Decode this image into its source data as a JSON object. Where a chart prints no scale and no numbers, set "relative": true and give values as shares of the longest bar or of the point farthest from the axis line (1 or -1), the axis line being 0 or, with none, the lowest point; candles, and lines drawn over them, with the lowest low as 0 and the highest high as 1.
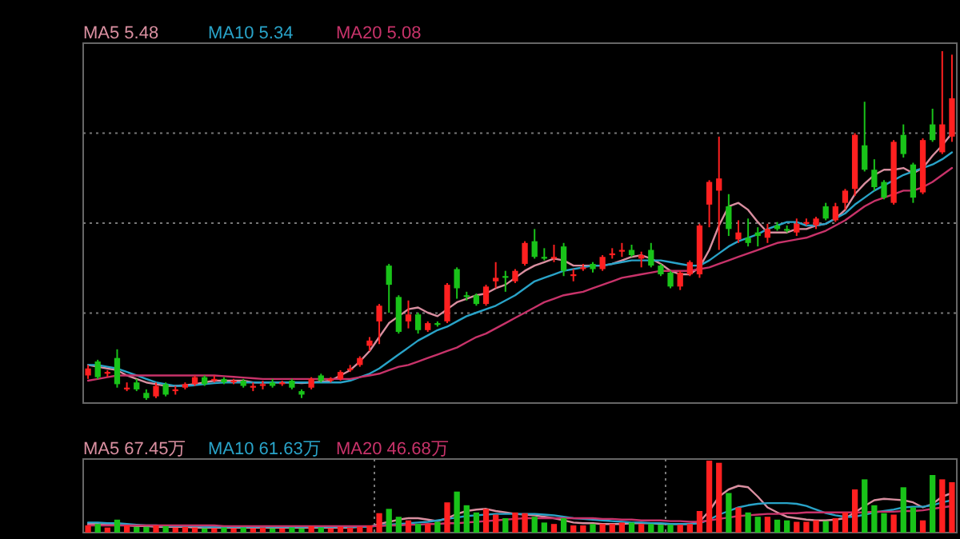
{
  "chart_data": [
    {
      "type": "candlestick",
      "relative": true,
      "grid": "y",
      "legend": "top left",
      "categories": [
        null,
        null,
        null,
        null,
        null,
        null,
        null,
        null,
        null,
        null,
        null,
        null,
        null,
        null,
        null,
        null,
        null,
        null,
        null,
        null,
        null,
        null,
        null,
        null,
        null,
        null,
        null,
        null,
        null,
        null,
        null,
        null,
        null,
        null,
        null,
        null,
        null,
        null,
        null,
        null,
        null,
        null,
        null,
        null,
        null,
        null,
        null,
        null,
        null,
        null,
        null,
        null,
        null,
        null,
        null,
        null,
        null,
        null,
        null,
        null,
        null,
        null,
        null,
        null,
        null,
        null,
        null,
        null,
        null,
        null,
        null,
        null,
        null,
        null,
        null,
        null,
        null,
        null,
        null,
        null,
        null,
        null,
        null,
        null,
        null,
        null,
        null,
        null,
        null,
        null
      ],
      "ohlc": [
        [
          0.07,
          0.1,
          0.06,
          0.09
        ],
        [
          0.11,
          0.115,
          0.06,
          0.065
        ],
        [
          0.075,
          0.085,
          0.065,
          0.08
        ],
        [
          0.12,
          0.145,
          0.035,
          0.045
        ],
        [
          0.03,
          0.05,
          0.025,
          0.035
        ],
        [
          0.05,
          0.06,
          0.025,
          0.03
        ],
        [
          0.02,
          0.03,
          0,
          0.005
        ],
        [
          0.01,
          0.05,
          0.005,
          0.04
        ],
        [
          0.045,
          0.05,
          0.01,
          0.015
        ],
        [
          0.025,
          0.04,
          0.015,
          0.03
        ],
        [
          0.035,
          0.05,
          0.03,
          0.045
        ],
        [
          0.045,
          0.07,
          0.04,
          0.065
        ],
        [
          0.065,
          0.07,
          0.04,
          0.045
        ],
        [
          0.055,
          0.07,
          0.05,
          0.06
        ],
        [
          0.06,
          0.065,
          0.045,
          0.05
        ],
        [
          0.05,
          0.06,
          0.045,
          0.055
        ],
        [
          0.055,
          0.06,
          0.035,
          0.04
        ],
        [
          0.035,
          0.05,
          0.025,
          0.04
        ],
        [
          0.04,
          0.055,
          0.03,
          0.045
        ],
        [
          0.05,
          0.06,
          0.035,
          0.04
        ],
        [
          0.045,
          0.055,
          0.04,
          0.05
        ],
        [
          0.055,
          0.06,
          0.03,
          0.035
        ],
        [
          0.025,
          0.03,
          0.005,
          0.015
        ],
        [
          0.035,
          0.065,
          0.03,
          0.06
        ],
        [
          0.07,
          0.075,
          0.05,
          0.055
        ],
        [
          0.055,
          0.065,
          0.05,
          0.06
        ],
        [
          0.06,
          0.085,
          0.055,
          0.08
        ],
        [
          0.085,
          0.1,
          0.08,
          0.09
        ],
        [
          0.1,
          0.125,
          0.095,
          0.12
        ],
        [
          0.155,
          0.18,
          0.14,
          0.17
        ],
        [
          0.225,
          0.275,
          0.16,
          0.27
        ],
        [
          0.385,
          0.39,
          0.25,
          0.33
        ],
        [
          0.295,
          0.3,
          0.19,
          0.195
        ],
        [
          0.225,
          0.285,
          0.205,
          0.245
        ],
        [
          0.245,
          0.25,
          0.19,
          0.2
        ],
        [
          0.2,
          0.225,
          0.195,
          0.22
        ],
        [
          0.22,
          0.225,
          0.21,
          0.215
        ],
        [
          0.225,
          0.335,
          0.22,
          0.33
        ],
        [
          0.375,
          0.38,
          0.29,
          0.32
        ],
        [
          0.3,
          0.31,
          0.285,
          0.295
        ],
        [
          0.3,
          0.305,
          0.27,
          0.275
        ],
        [
          0.275,
          0.33,
          0.27,
          0.325
        ],
        [
          0.34,
          0.395,
          0.32,
          0.35
        ],
        [
          0.355,
          0.37,
          0.31,
          0.35
        ],
        [
          0.34,
          0.375,
          0.335,
          0.37
        ],
        [
          0.39,
          0.455,
          0.385,
          0.45
        ],
        [
          0.455,
          0.49,
          0.405,
          0.41
        ],
        [
          0.41,
          0.435,
          0.4,
          0.405
        ],
        [
          0.405,
          0.445,
          0.395,
          0.41
        ],
        [
          0.44,
          0.45,
          0.355,
          0.37
        ],
        [
          0.355,
          0.375,
          0.34,
          0.36
        ],
        [
          0.375,
          0.39,
          0.37,
          0.38
        ],
        [
          0.39,
          0.395,
          0.365,
          0.375
        ],
        [
          0.375,
          0.415,
          0.37,
          0.41
        ],
        [
          0.415,
          0.435,
          0.405,
          0.42
        ],
        [
          0.425,
          0.45,
          0.41,
          0.43
        ],
        [
          0.43,
          0.445,
          0.41,
          0.415
        ],
        [
          0.405,
          0.425,
          0.38,
          0.415
        ],
        [
          0.43,
          0.45,
          0.38,
          0.385
        ],
        [
          0.385,
          0.39,
          0.355,
          0.36
        ],
        [
          0.365,
          0.37,
          0.32,
          0.325
        ],
        [
          0.325,
          0.37,
          0.315,
          0.365
        ],
        [
          0.36,
          0.4,
          0.355,
          0.395
        ],
        [
          0.36,
          0.505,
          0.35,
          0.5
        ],
        [
          0.56,
          0.63,
          0.495,
          0.625
        ],
        [
          0.6,
          0.755,
          0.43,
          0.635
        ],
        [
          0.555,
          0.59,
          0.47,
          0.49
        ],
        [
          0.46,
          0.515,
          0.45,
          0.48
        ],
        [
          0.465,
          0.52,
          0.44,
          0.45
        ],
        [
          0.48,
          0.495,
          0.44,
          0.47
        ],
        [
          0.465,
          0.505,
          0.45,
          0.49
        ],
        [
          0.5,
          0.51,
          0.485,
          0.49
        ],
        [
          0.49,
          0.5,
          0.48,
          0.485
        ],
        [
          0.48,
          0.52,
          0.47,
          0.505
        ],
        [
          0.505,
          0.52,
          0.5,
          0.51
        ],
        [
          0.5,
          0.525,
          0.49,
          0.52
        ],
        [
          0.555,
          0.565,
          0.515,
          0.52
        ],
        [
          0.515,
          0.565,
          0.51,
          0.555
        ],
        [
          0.565,
          0.605,
          0.545,
          0.6
        ],
        [
          0.605,
          0.765,
          0.585,
          0.76
        ],
        [
          0.73,
          0.855,
          0.655,
          0.66
        ],
        [
          0.66,
          0.69,
          0.6,
          0.61
        ],
        [
          0.625,
          0.63,
          0.575,
          0.58
        ],
        [
          0.565,
          0.745,
          0.56,
          0.74
        ],
        [
          0.76,
          0.79,
          0.695,
          0.705
        ],
        [
          0.675,
          0.68,
          0.565,
          0.58
        ],
        [
          0.595,
          0.75,
          0.59,
          0.745
        ],
        [
          0.79,
          0.835,
          0.74,
          0.745
        ],
        [
          0.71,
          1,
          0.705,
          0.79
        ],
        [
          0.755,
          0.99,
          0.74,
          0.865
        ]
      ],
      "colors": [
        "#ff2020",
        "#19c319",
        "#ff2020",
        "#19c319",
        "#ff2020",
        "#19c319",
        "#19c319",
        "#ff2020",
        "#19c319",
        "#ff2020",
        "#ff2020",
        "#ff2020",
        "#19c319",
        "#ff2020",
        "#19c319",
        "#ff2020",
        "#19c319",
        "#ff2020",
        "#ff2020",
        "#19c319",
        "#ff2020",
        "#19c319",
        "#19c319",
        "#ff2020",
        "#19c319",
        "#ff2020",
        "#ff2020",
        "#ff2020",
        "#ff2020",
        "#ff2020",
        "#ff2020",
        "#19c319",
        "#19c319",
        "#ff2020",
        "#19c319",
        "#ff2020",
        "#19c319",
        "#ff2020",
        "#19c319",
        "#19c319",
        "#19c319",
        "#ff2020",
        "#ff2020",
        "#19c319",
        "#ff2020",
        "#ff2020",
        "#19c319",
        "#19c319",
        "#ff2020",
        "#19c319",
        "#ff2020",
        "#ff2020",
        "#19c319",
        "#ff2020",
        "#ff2020",
        "#ff2020",
        "#19c319",
        "#ff2020",
        "#19c319",
        "#19c319",
        "#19c319",
        "#ff2020",
        "#ff2020",
        "#ff2020",
        "#ff2020",
        "#ff2020",
        "#19c319",
        "#ff2020",
        "#19c319",
        "#19c319",
        "#ff2020",
        "#19c319",
        "#19c319",
        "#ff2020",
        "#ff2020",
        "#ff2020",
        "#19c319",
        "#ff2020",
        "#ff2020",
        "#ff2020",
        "#19c319",
        "#19c319",
        "#19c319",
        "#ff2020",
        "#19c319",
        "#19c319",
        "#ff2020",
        "#19c319",
        "#ff2020",
        "#ff2020"
      ],
      "series": [
        {
          "type": "line",
          "name": "MA5 5.48",
          "color": "#d98fa0",
          "values": [
            0.1,
            0.095,
            0.09,
            0.085,
            0.07,
            0.06,
            0.05,
            0.045,
            0.04,
            0.04,
            0.042,
            0.045,
            0.05,
            0.055,
            0.055,
            0.055,
            0.055,
            0.05,
            0.05,
            0.05,
            0.05,
            0.05,
            0.048,
            0.05,
            0.052,
            0.055,
            0.07,
            0.085,
            0.11,
            0.14,
            0.18,
            0.22,
            0.24,
            0.26,
            0.265,
            0.25,
            0.24,
            0.26,
            0.28,
            0.29,
            0.3,
            0.305,
            0.32,
            0.33,
            0.35,
            0.37,
            0.385,
            0.395,
            0.405,
            0.4,
            0.385,
            0.385,
            0.385,
            0.385,
            0.39,
            0.4,
            0.41,
            0.415,
            0.405,
            0.39,
            0.37,
            0.36,
            0.36,
            0.38,
            0.43,
            0.5,
            0.555,
            0.565,
            0.545,
            0.51,
            0.48,
            0.48,
            0.48,
            0.49,
            0.49,
            0.5,
            0.505,
            0.52,
            0.545,
            0.59,
            0.62,
            0.645,
            0.66,
            0.66,
            0.665,
            0.65,
            0.665,
            0.7,
            0.73,
            0.765
          ]
        },
        {
          "type": "line",
          "name": "MA10 5.34",
          "color": "#29a3c8",
          "values": [
            0.1,
            0.1,
            0.095,
            0.09,
            0.08,
            0.07,
            0.06,
            0.05,
            0.045,
            0.04,
            0.04,
            0.042,
            0.045,
            0.048,
            0.05,
            0.05,
            0.05,
            0.05,
            0.05,
            0.05,
            0.05,
            0.05,
            0.05,
            0.05,
            0.05,
            0.05,
            0.05,
            0.055,
            0.065,
            0.075,
            0.09,
            0.11,
            0.13,
            0.15,
            0.17,
            0.185,
            0.2,
            0.21,
            0.225,
            0.24,
            0.25,
            0.26,
            0.27,
            0.285,
            0.3,
            0.32,
            0.34,
            0.35,
            0.36,
            0.37,
            0.375,
            0.38,
            0.385,
            0.385,
            0.39,
            0.395,
            0.4,
            0.4,
            0.4,
            0.4,
            0.395,
            0.39,
            0.385,
            0.385,
            0.4,
            0.42,
            0.44,
            0.455,
            0.465,
            0.475,
            0.49,
            0.5,
            0.51,
            0.51,
            0.5,
            0.5,
            0.505,
            0.52,
            0.535,
            0.56,
            0.58,
            0.6,
            0.615,
            0.63,
            0.645,
            0.655,
            0.665,
            0.675,
            0.69,
            0.71
          ]
        },
        {
          "type": "line",
          "name": "MA20 5.08",
          "color": "#c8336a",
          "values": [
            0.055,
            0.06,
            0.065,
            0.07,
            0.07,
            0.07,
            0.07,
            0.07,
            0.07,
            0.07,
            0.07,
            0.07,
            0.07,
            0.07,
            0.068,
            0.066,
            0.064,
            0.062,
            0.06,
            0.06,
            0.06,
            0.06,
            0.06,
            0.06,
            0.06,
            0.06,
            0.06,
            0.06,
            0.065,
            0.07,
            0.075,
            0.085,
            0.095,
            0.1,
            0.11,
            0.12,
            0.13,
            0.14,
            0.15,
            0.165,
            0.18,
            0.19,
            0.205,
            0.22,
            0.235,
            0.25,
            0.265,
            0.28,
            0.29,
            0.3,
            0.305,
            0.31,
            0.32,
            0.33,
            0.34,
            0.35,
            0.355,
            0.36,
            0.365,
            0.37,
            0.37,
            0.37,
            0.37,
            0.375,
            0.38,
            0.39,
            0.4,
            0.41,
            0.42,
            0.43,
            0.44,
            0.45,
            0.455,
            0.46,
            0.465,
            0.475,
            0.485,
            0.5,
            0.515,
            0.535,
            0.555,
            0.57,
            0.58,
            0.59,
            0.6,
            0.6,
            0.61,
            0.625,
            0.645,
            0.665
          ]
        }
      ]
    },
    {
      "type": "bar",
      "relative": true,
      "grid": "x",
      "legend": "top left",
      "categories": [
        null,
        null,
        null,
        null,
        null,
        null,
        null,
        null,
        null,
        null,
        null,
        null,
        null,
        null,
        null,
        null,
        null,
        null,
        null,
        null,
        null,
        null,
        null,
        null,
        null,
        null,
        null,
        null,
        null,
        null,
        null,
        null,
        null,
        null,
        null,
        null,
        null,
        null,
        null,
        null,
        null,
        null,
        null,
        null,
        null,
        null,
        null,
        null,
        null,
        null,
        null,
        null,
        null,
        null,
        null,
        null,
        null,
        null,
        null,
        null,
        null,
        null,
        null,
        null,
        null,
        null,
        null,
        null,
        null,
        null,
        null,
        null,
        null,
        null,
        null,
        null,
        null,
        null,
        null,
        null,
        null,
        null,
        null,
        null,
        null,
        null,
        null,
        null,
        null,
        null
      ],
      "values": [
        0.1,
        0.12,
        0.07,
        0.18,
        0.1,
        0.08,
        0.08,
        0.1,
        0.09,
        0.07,
        0.08,
        0.07,
        0.06,
        0.06,
        0.07,
        0.06,
        0.07,
        0.06,
        0.07,
        0.06,
        0.06,
        0.07,
        0.06,
        0.09,
        0.07,
        0.06,
        0.08,
        0.07,
        0.08,
        0.1,
        0.27,
        0.33,
        0.22,
        0.17,
        0.12,
        0.12,
        0.15,
        0.42,
        0.57,
        0.38,
        0.28,
        0.33,
        0.25,
        0.2,
        0.28,
        0.27,
        0.22,
        0.14,
        0.12,
        0.2,
        0.1,
        0.1,
        0.12,
        0.12,
        0.12,
        0.14,
        0.14,
        0.12,
        0.12,
        0.11,
        0.11,
        0.11,
        0.12,
        0.3,
        1,
        0.97,
        0.55,
        0.35,
        0.28,
        0.22,
        0.22,
        0.18,
        0.17,
        0.15,
        0.15,
        0.17,
        0.16,
        0.2,
        0.28,
        0.6,
        0.74,
        0.38,
        0.27,
        0.25,
        0.63,
        0.35,
        0.17,
        0.8,
        0.74,
        0.7
      ],
      "colors": [
        "#ff2020",
        "#19c319",
        "#ff2020",
        "#19c319",
        "#ff2020",
        "#19c319",
        "#19c319",
        "#ff2020",
        "#19c319",
        "#ff2020",
        "#ff2020",
        "#ff2020",
        "#19c319",
        "#ff2020",
        "#19c319",
        "#ff2020",
        "#19c319",
        "#ff2020",
        "#ff2020",
        "#19c319",
        "#ff2020",
        "#19c319",
        "#19c319",
        "#ff2020",
        "#19c319",
        "#ff2020",
        "#ff2020",
        "#ff2020",
        "#ff2020",
        "#ff2020",
        "#ff2020",
        "#19c319",
        "#19c319",
        "#ff2020",
        "#19c319",
        "#ff2020",
        "#19c319",
        "#ff2020",
        "#19c319",
        "#19c319",
        "#19c319",
        "#ff2020",
        "#ff2020",
        "#19c319",
        "#ff2020",
        "#ff2020",
        "#19c319",
        "#19c319",
        "#ff2020",
        "#19c319",
        "#ff2020",
        "#ff2020",
        "#19c319",
        "#ff2020",
        "#ff2020",
        "#ff2020",
        "#19c319",
        "#ff2020",
        "#19c319",
        "#19c319",
        "#19c319",
        "#ff2020",
        "#ff2020",
        "#ff2020",
        "#ff2020",
        "#ff2020",
        "#19c319",
        "#ff2020",
        "#19c319",
        "#19c319",
        "#ff2020",
        "#19c319",
        "#19c319",
        "#ff2020",
        "#ff2020",
        "#ff2020",
        "#19c319",
        "#ff2020",
        "#ff2020",
        "#ff2020",
        "#19c319",
        "#19c319",
        "#19c319",
        "#ff2020",
        "#19c319",
        "#19c319",
        "#ff2020",
        "#19c319",
        "#ff2020",
        "#ff2020"
      ],
      "series": [
        {
          "type": "line",
          "name": "MA5 67.45万",
          "color": "#d98fa0",
          "values": [
            0.12,
            0.12,
            0.11,
            0.11,
            0.1,
            0.09,
            0.09,
            0.08,
            0.08,
            0.08,
            0.08,
            0.07,
            0.07,
            0.07,
            0.07,
            0.07,
            0.07,
            0.07,
            0.07,
            0.07,
            0.07,
            0.07,
            0.07,
            0.07,
            0.07,
            0.07,
            0.07,
            0.07,
            0.08,
            0.08,
            0.12,
            0.15,
            0.18,
            0.2,
            0.2,
            0.18,
            0.16,
            0.2,
            0.26,
            0.3,
            0.32,
            0.33,
            0.3,
            0.28,
            0.26,
            0.25,
            0.24,
            0.22,
            0.2,
            0.17,
            0.14,
            0.13,
            0.13,
            0.12,
            0.12,
            0.12,
            0.13,
            0.13,
            0.13,
            0.12,
            0.12,
            0.12,
            0.12,
            0.15,
            0.3,
            0.5,
            0.6,
            0.65,
            0.63,
            0.5,
            0.35,
            0.28,
            0.22,
            0.2,
            0.18,
            0.17,
            0.17,
            0.18,
            0.2,
            0.28,
            0.37,
            0.45,
            0.47,
            0.46,
            0.45,
            0.42,
            0.35,
            0.4,
            0.5,
            0.55
          ]
        },
        {
          "type": "line",
          "name": "MA10 61.63万",
          "color": "#29a3c8",
          "values": [
            0.14,
            0.14,
            0.13,
            0.13,
            0.12,
            0.11,
            0.1,
            0.1,
            0.09,
            0.09,
            0.09,
            0.09,
            0.08,
            0.08,
            0.08,
            0.08,
            0.08,
            0.08,
            0.08,
            0.08,
            0.08,
            0.08,
            0.08,
            0.08,
            0.08,
            0.08,
            0.08,
            0.08,
            0.08,
            0.08,
            0.1,
            0.11,
            0.12,
            0.13,
            0.14,
            0.15,
            0.17,
            0.19,
            0.21,
            0.23,
            0.24,
            0.25,
            0.26,
            0.26,
            0.26,
            0.26,
            0.26,
            0.25,
            0.24,
            0.22,
            0.2,
            0.19,
            0.18,
            0.17,
            0.16,
            0.15,
            0.14,
            0.14,
            0.13,
            0.13,
            0.12,
            0.12,
            0.12,
            0.13,
            0.18,
            0.25,
            0.3,
            0.35,
            0.38,
            0.4,
            0.41,
            0.41,
            0.41,
            0.4,
            0.37,
            0.32,
            0.27,
            0.24,
            0.22,
            0.22,
            0.25,
            0.28,
            0.3,
            0.32,
            0.35,
            0.36,
            0.36,
            0.38,
            0.42,
            0.45
          ]
        },
        {
          "type": "line",
          "name": "MA20 46.68万",
          "color": "#c8336a",
          "values": [
            0.1,
            0.1,
            0.1,
            0.1,
            0.1,
            0.1,
            0.1,
            0.1,
            0.1,
            0.1,
            0.1,
            0.1,
            0.1,
            0.1,
            0.09,
            0.09,
            0.09,
            0.09,
            0.09,
            0.09,
            0.09,
            0.09,
            0.09,
            0.09,
            0.09,
            0.09,
            0.09,
            0.09,
            0.09,
            0.09,
            0.09,
            0.1,
            0.1,
            0.11,
            0.11,
            0.12,
            0.12,
            0.13,
            0.13,
            0.14,
            0.15,
            0.16,
            0.17,
            0.18,
            0.19,
            0.2,
            0.2,
            0.2,
            0.2,
            0.2,
            0.2,
            0.2,
            0.2,
            0.19,
            0.19,
            0.18,
            0.18,
            0.17,
            0.17,
            0.17,
            0.16,
            0.16,
            0.15,
            0.15,
            0.17,
            0.19,
            0.21,
            0.23,
            0.24,
            0.25,
            0.26,
            0.26,
            0.27,
            0.27,
            0.28,
            0.28,
            0.28,
            0.28,
            0.28,
            0.28,
            0.28,
            0.29,
            0.29,
            0.29,
            0.3,
            0.3,
            0.31,
            0.33,
            0.35,
            0.37
          ]
        }
      ]
    }
  ]
}
